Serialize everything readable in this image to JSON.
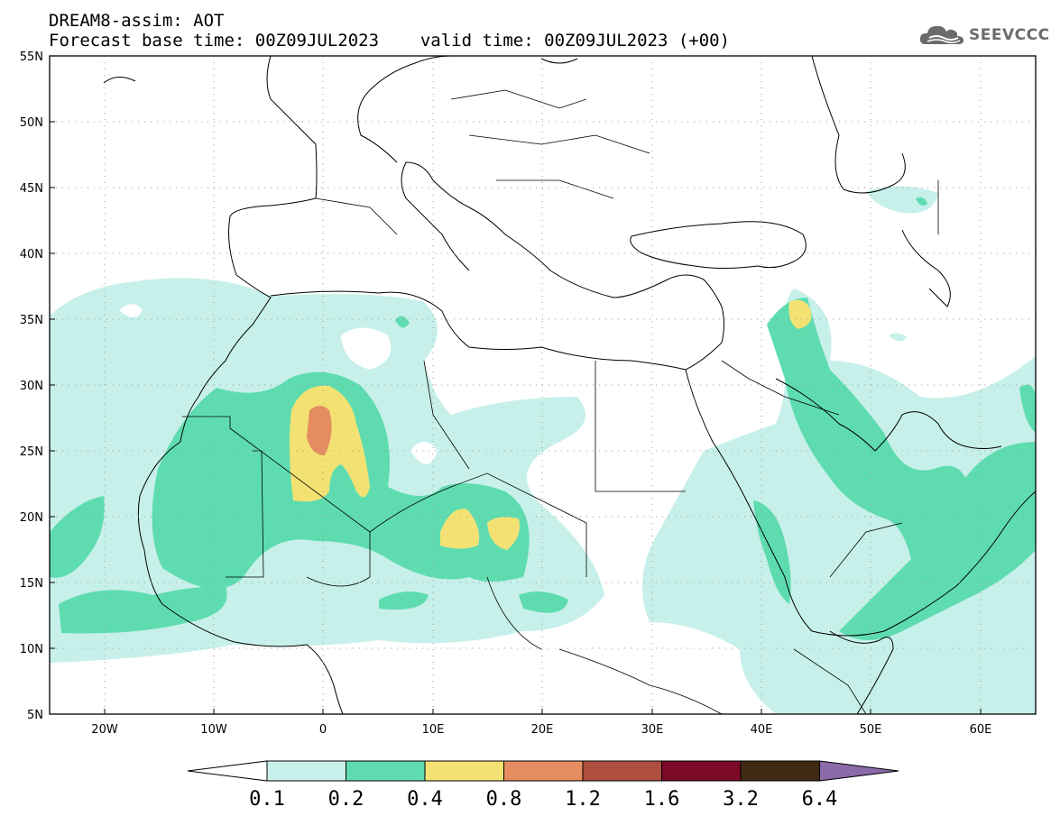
{
  "header": {
    "model_title": "DREAM8-assim: AOT",
    "base_label": "Forecast base time:",
    "base_time": "00Z09JUL2023",
    "valid_label": "valid time:",
    "valid_time": "00Z09JUL2023 (+00)"
  },
  "logo": {
    "text": "SEEVCCC",
    "icon": "cloud-icon",
    "color": "#6b6b6b"
  },
  "map": {
    "lon_range": [
      -25,
      65
    ],
    "lat_range": [
      5,
      55
    ],
    "lat_ticks": [
      "55N",
      "50N",
      "45N",
      "40N",
      "35N",
      "30N",
      "25N",
      "20N",
      "15N",
      "10N",
      "5N"
    ],
    "lon_ticks": [
      "20W",
      "10W",
      "0",
      "10E",
      "20E",
      "30E",
      "40E",
      "50E",
      "60E"
    ],
    "grid": "dotted"
  },
  "colorbar": {
    "labels": [
      "0.1",
      "0.2",
      "0.4",
      "0.8",
      "1.2",
      "1.6",
      "3.2",
      "6.4"
    ],
    "colors": [
      "#ffffff",
      "#c7f0ea",
      "#5edcb0",
      "#f3e273",
      "#e58d61",
      "#ad4e3e",
      "#7a0a28",
      "#3f2a14",
      "#8b6aa8"
    ]
  }
}
